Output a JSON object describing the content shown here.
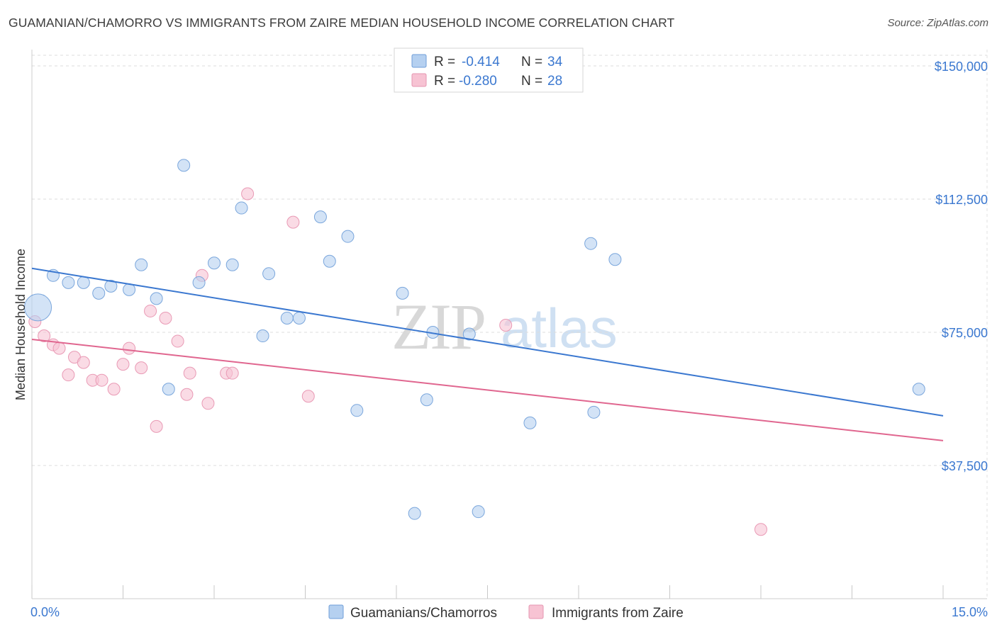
{
  "header": {
    "title": "GUAMANIAN/CHAMORRO VS IMMIGRANTS FROM ZAIRE MEDIAN HOUSEHOLD INCOME CORRELATION CHART",
    "source": "Source: ZipAtlas.com"
  },
  "watermark": {
    "part1": "ZIP",
    "part2": "atlas"
  },
  "legend": {
    "rows": [
      {
        "r_label": "R =",
        "r_value": "-0.414",
        "n_label": "N =",
        "n_value": "34",
        "color": "#b5d0f0"
      },
      {
        "r_label": "R =",
        "r_value": "-0.280",
        "n_label": "N =",
        "n_value": "28",
        "color": "#f7c3d3"
      }
    ]
  },
  "bottom_legend": {
    "items": [
      {
        "label": "Guamanians/Chamorros",
        "color": "#b5d0f0"
      },
      {
        "label": "Immigrants from Zaire",
        "color": "#f7c3d3"
      }
    ]
  },
  "chart_data": {
    "type": "scatter",
    "title": "GUAMANIAN/CHAMORRO VS IMMIGRANTS FROM ZAIRE MEDIAN HOUSEHOLD INCOME CORRELATION CHART",
    "xlabel": "",
    "ylabel": "Median Household Income",
    "xlim": [
      0,
      15
    ],
    "ylim": [
      0,
      153000
    ],
    "x_tick_labels": [
      "0.0%",
      "15.0%"
    ],
    "y_ticks": [
      37500,
      75000,
      112500,
      150000
    ],
    "y_tick_labels": [
      "$37,500",
      "$75,000",
      "$112,500",
      "$150,000"
    ],
    "grid": "horizontal dashed",
    "legend_position": "top-center",
    "series": [
      {
        "name": "Guamanians/Chamorros",
        "color": "#3b78d0",
        "fill": "#b5d0f0",
        "trend": {
          "x": [
            0.0,
            15.0
          ],
          "y": [
            93000,
            51500
          ]
        },
        "points": [
          [
            0.1,
            82000,
            "large"
          ],
          [
            0.35,
            91000
          ],
          [
            0.6,
            89000
          ],
          [
            0.85,
            89000
          ],
          [
            1.1,
            86000
          ],
          [
            1.3,
            88000
          ],
          [
            1.6,
            87000
          ],
          [
            1.8,
            94000
          ],
          [
            2.05,
            84500
          ],
          [
            2.25,
            59000
          ],
          [
            2.5,
            122000
          ],
          [
            2.75,
            89000
          ],
          [
            3.0,
            94500
          ],
          [
            3.3,
            94000
          ],
          [
            3.45,
            110000
          ],
          [
            3.8,
            74000
          ],
          [
            3.9,
            91500
          ],
          [
            4.2,
            79000
          ],
          [
            4.4,
            79000
          ],
          [
            4.75,
            107500
          ],
          [
            4.9,
            95000
          ],
          [
            5.2,
            102000
          ],
          [
            5.35,
            53000
          ],
          [
            6.1,
            86000
          ],
          [
            6.3,
            24000
          ],
          [
            6.5,
            56000
          ],
          [
            6.6,
            75000
          ],
          [
            7.2,
            74500
          ],
          [
            7.35,
            24500
          ],
          [
            8.2,
            49500
          ],
          [
            9.2,
            100000
          ],
          [
            9.25,
            52500
          ],
          [
            9.6,
            95500
          ],
          [
            14.6,
            59000
          ]
        ]
      },
      {
        "name": "Immigrants from Zaire",
        "color": "#e0668f",
        "fill": "#f7c3d3",
        "trend": {
          "x": [
            0.0,
            15.0
          ],
          "y": [
            73000,
            44500
          ]
        },
        "points": [
          [
            0.05,
            78000
          ],
          [
            0.2,
            74000
          ],
          [
            0.35,
            71500
          ],
          [
            0.45,
            70500
          ],
          [
            0.6,
            63000
          ],
          [
            0.7,
            68000
          ],
          [
            0.85,
            66500
          ],
          [
            1.0,
            61500
          ],
          [
            1.15,
            61500
          ],
          [
            1.35,
            59000
          ],
          [
            1.5,
            66000
          ],
          [
            1.6,
            70500
          ],
          [
            1.8,
            65000
          ],
          [
            1.95,
            81000
          ],
          [
            2.05,
            48500
          ],
          [
            2.2,
            79000
          ],
          [
            2.4,
            72500
          ],
          [
            2.55,
            57500
          ],
          [
            2.6,
            63500
          ],
          [
            2.8,
            91000
          ],
          [
            2.9,
            55000
          ],
          [
            3.2,
            63500
          ],
          [
            3.3,
            63500
          ],
          [
            3.55,
            114000
          ],
          [
            4.3,
            106000
          ],
          [
            4.55,
            57000
          ],
          [
            7.8,
            77000
          ],
          [
            12.0,
            19500
          ]
        ]
      }
    ]
  }
}
